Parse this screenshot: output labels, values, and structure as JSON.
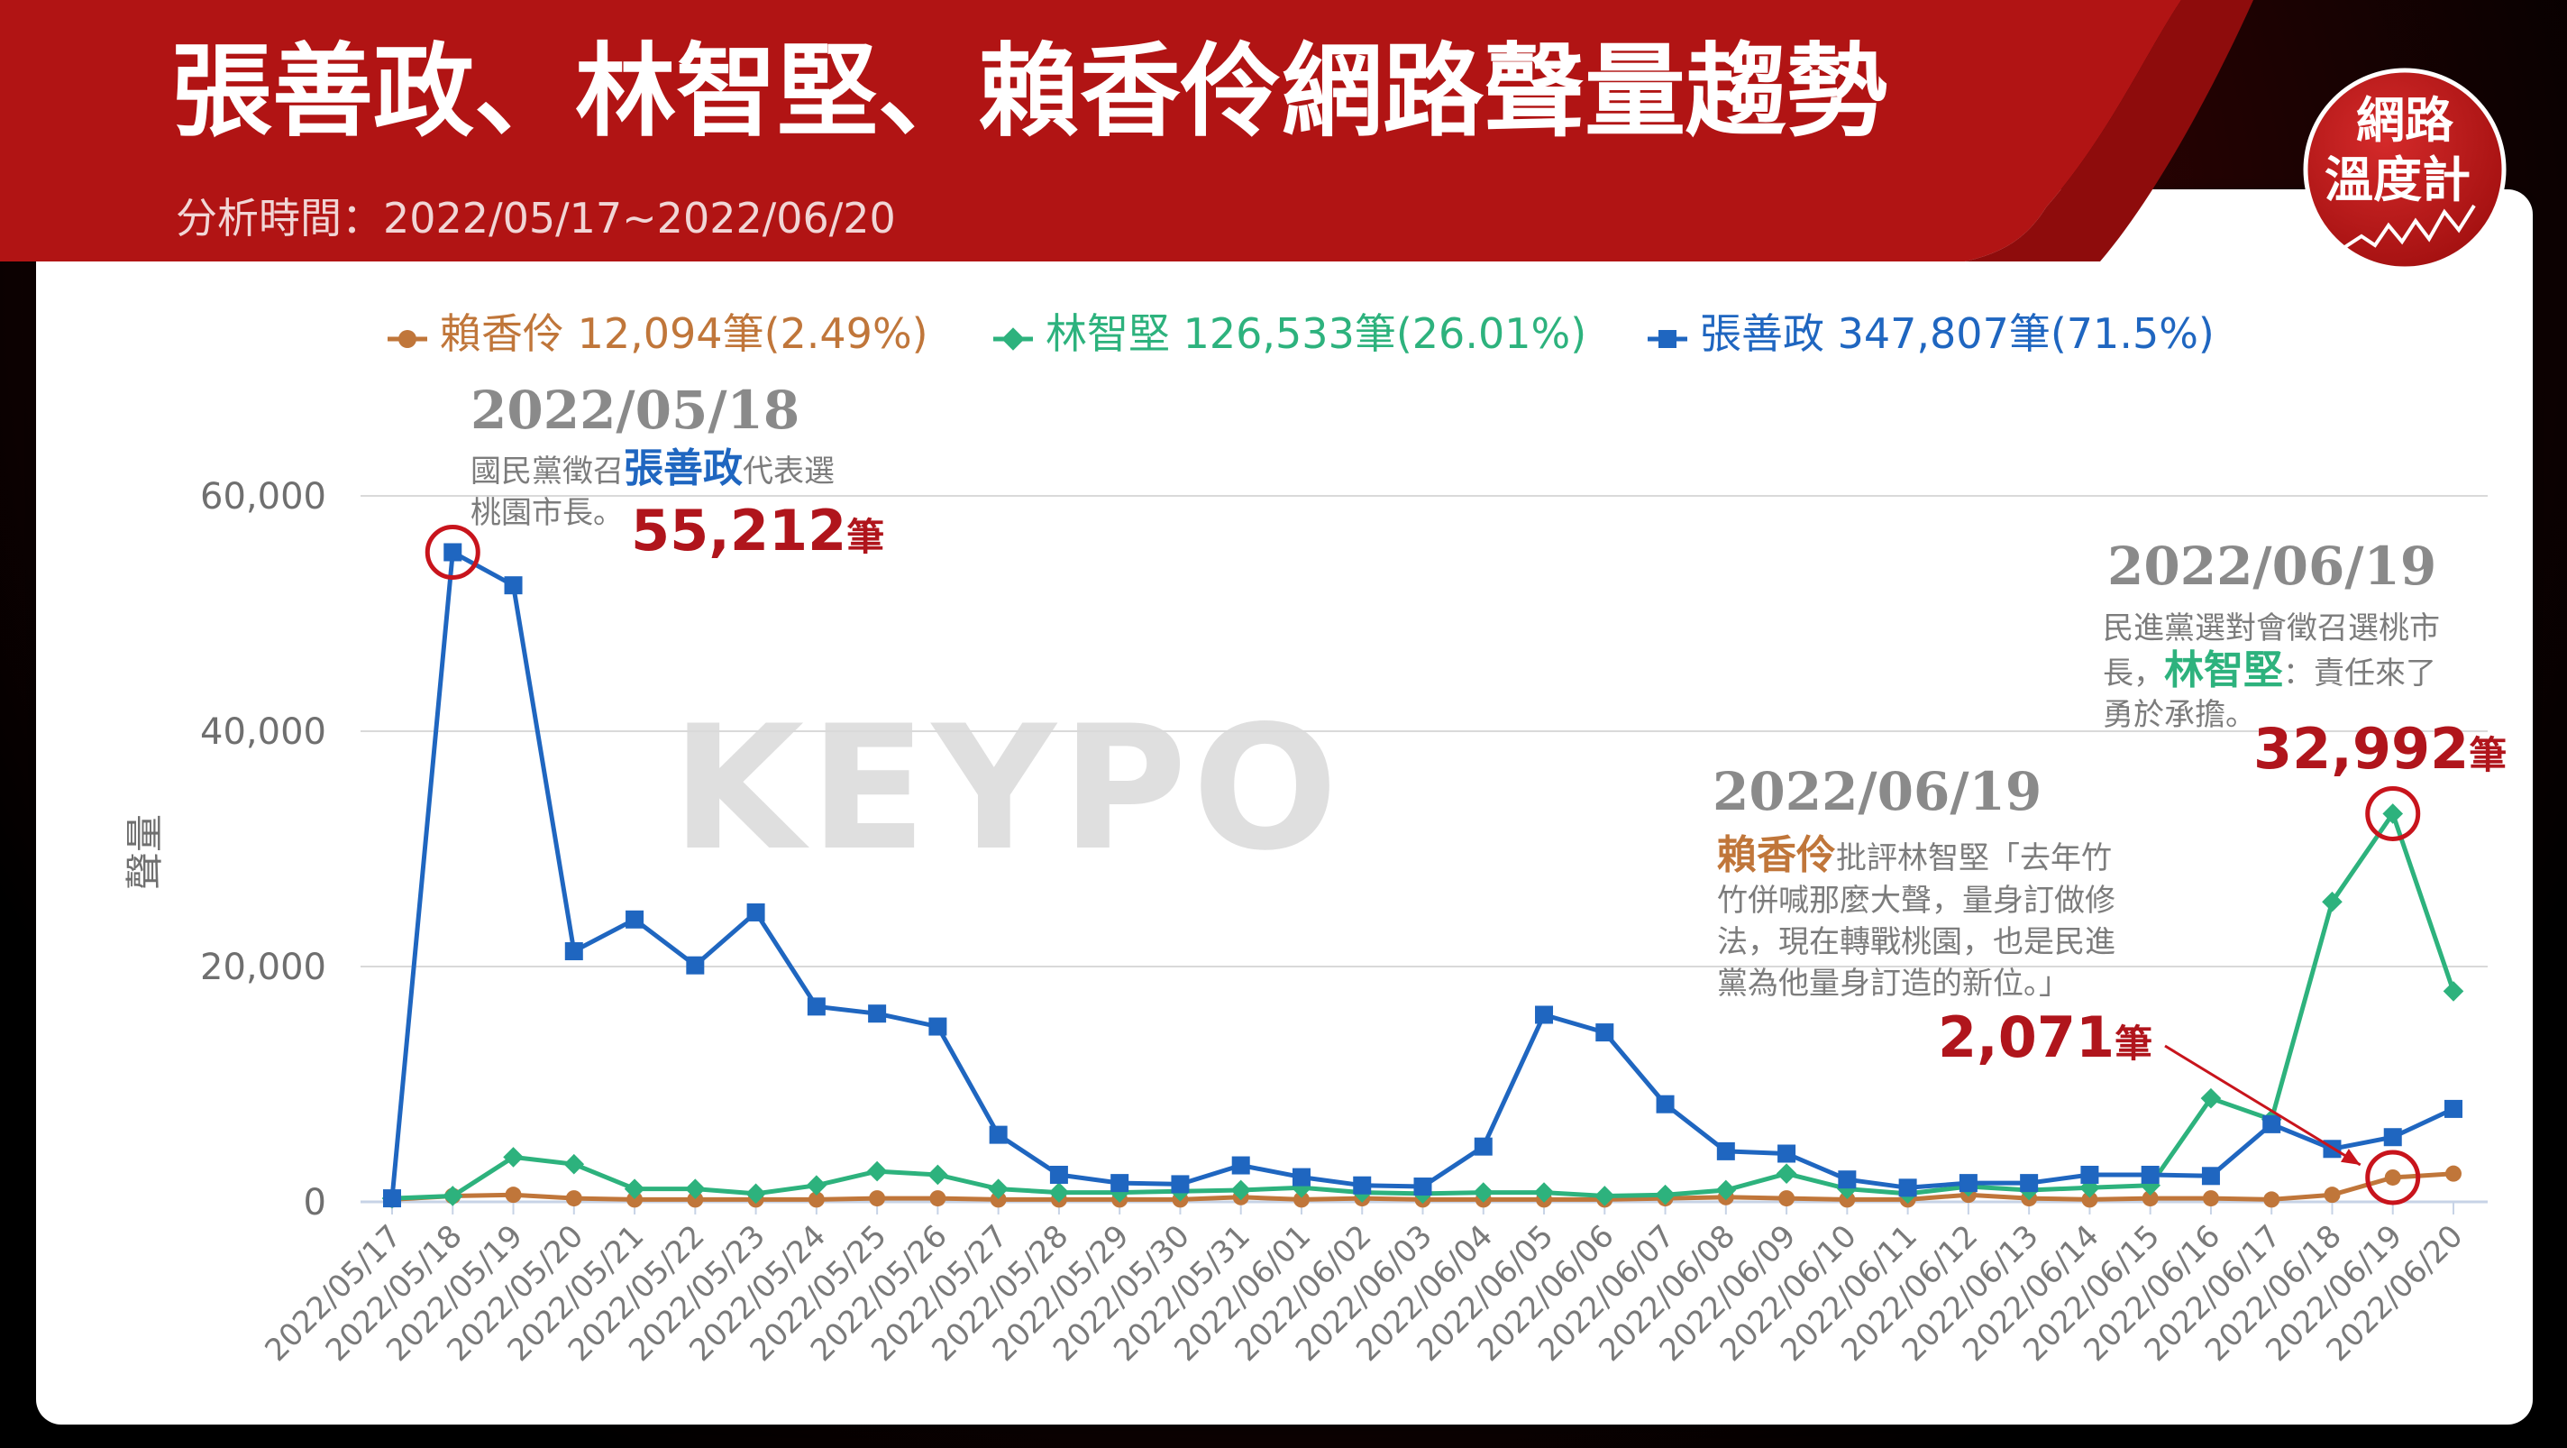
{
  "header": {
    "title": "張善政、林智堅、賴香伶網路聲量趨勢",
    "subtitle": "分析時間：2022/05/17~2022/06/20"
  },
  "logo": {
    "line1": "網路",
    "line2": "溫度計"
  },
  "watermark": "KEYPO",
  "colors": {
    "header_red": "#b11414",
    "highlight": "#b0151c",
    "zhang": "#1f66c0",
    "lin": "#2db27d",
    "lai": "#c0763a"
  },
  "legend": [
    {
      "label": "賴香伶 12,094筆(2.49%)",
      "series": "lai",
      "marker": "circle"
    },
    {
      "label": "林智堅 126,533筆(26.01%)",
      "series": "lin",
      "marker": "diamond"
    },
    {
      "label": "張善政 347,807筆(71.5%)",
      "series": "zhang",
      "marker": "square"
    }
  ],
  "annotations": {
    "a1": {
      "date": "2022/05/18",
      "line1_pre": "國民黨徵召",
      "name": "張善政",
      "line1_post": "代表選",
      "line2": "桃園市長。",
      "count_num": "55,212",
      "count_unit": "筆"
    },
    "a2": {
      "date": "2022/06/19",
      "line1": "民進黨選對會徵召選桃市",
      "line2_pre": "長，",
      "name": "林智堅",
      "line2_post": "：責任來了",
      "line3": "勇於承擔。",
      "count_num": "32,992",
      "count_unit": "筆"
    },
    "a3": {
      "date": "2022/06/19",
      "name": "賴香伶",
      "line1_post": "批評林智堅「去年竹",
      "line2": "竹併喊那麼大聲，量身訂做修",
      "line3": "法，現在轉戰桃園，也是民進",
      "line4": "黨為他量身訂造的新位。」",
      "count_num": "2,071",
      "count_unit": "筆"
    }
  },
  "chart_data": {
    "type": "line",
    "title": "張善政、林智堅、賴香伶網路聲量趨勢",
    "xlabel": "",
    "ylabel": "聲量",
    "ylim": [
      0,
      60000
    ],
    "yticks": [
      0,
      20000,
      40000,
      60000
    ],
    "ytick_labels": [
      "0",
      "20,000",
      "40,000",
      "60,000"
    ],
    "grid": true,
    "legend_position": "top",
    "x": [
      "2022/05/17",
      "2022/05/18",
      "2022/05/19",
      "2022/05/20",
      "2022/05/21",
      "2022/05/22",
      "2022/05/23",
      "2022/05/24",
      "2022/05/25",
      "2022/05/26",
      "2022/05/27",
      "2022/05/28",
      "2022/05/29",
      "2022/05/30",
      "2022/05/31",
      "2022/06/01",
      "2022/06/02",
      "2022/06/03",
      "2022/06/04",
      "2022/06/05",
      "2022/06/06",
      "2022/06/07",
      "2022/06/08",
      "2022/06/09",
      "2022/06/10",
      "2022/06/11",
      "2022/06/12",
      "2022/06/13",
      "2022/06/14",
      "2022/06/15",
      "2022/06/16",
      "2022/06/17",
      "2022/06/18",
      "2022/06/19",
      "2022/06/20"
    ],
    "series": [
      {
        "name": "賴香伶",
        "key": "lai",
        "color": "#c0763a",
        "marker": "circle",
        "values": [
          200,
          500,
          600,
          300,
          200,
          200,
          200,
          200,
          300,
          300,
          200,
          200,
          200,
          200,
          400,
          200,
          300,
          200,
          200,
          200,
          200,
          300,
          400,
          300,
          200,
          200,
          600,
          300,
          200,
          300,
          300,
          200,
          600,
          2071,
          2400
        ]
      },
      {
        "name": "林智堅",
        "key": "lin",
        "color": "#2db27d",
        "marker": "diamond",
        "values": [
          300,
          500,
          3800,
          3200,
          1100,
          1100,
          700,
          1400,
          2600,
          2300,
          1100,
          800,
          800,
          900,
          1000,
          1200,
          800,
          700,
          800,
          800,
          500,
          600,
          1000,
          2400,
          1100,
          700,
          1300,
          1000,
          1200,
          1400,
          8800,
          7000,
          25500,
          32992,
          17900
        ]
      },
      {
        "name": "張善政",
        "key": "zhang",
        "color": "#1f66c0",
        "marker": "square",
        "values": [
          300,
          55212,
          52400,
          21300,
          24000,
          20100,
          24600,
          16600,
          16000,
          14900,
          5700,
          2300,
          1600,
          1500,
          3100,
          2100,
          1400,
          1300,
          4700,
          15900,
          14400,
          8300,
          4300,
          4100,
          1900,
          1200,
          1600,
          1600,
          2300,
          2300,
          2200,
          6600,
          4500,
          5500,
          7900
        ]
      }
    ]
  }
}
